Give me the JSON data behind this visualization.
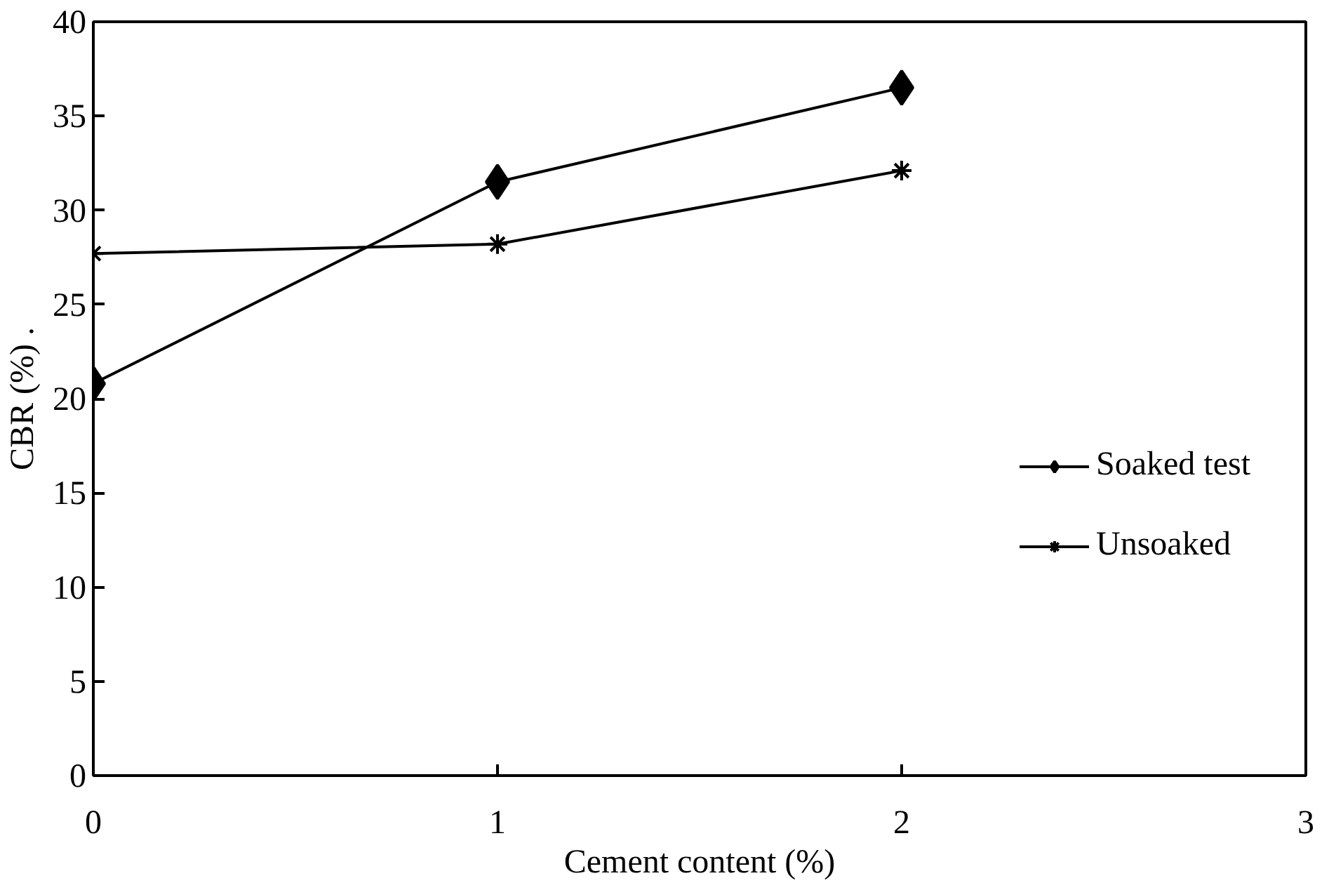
{
  "chart_data": {
    "type": "line",
    "xlabel": "Cement content (%)",
    "ylabel": "CBR (%) .",
    "x": [
      0,
      1,
      2
    ],
    "series": [
      {
        "name": "Soaked test",
        "color": "#000000",
        "marker": "diamond",
        "values": [
          20.8,
          31.5,
          36.5
        ]
      },
      {
        "name": "Unsoaked",
        "color": "#000000",
        "marker": "cross",
        "values": [
          27.7,
          28.2,
          32.1
        ]
      }
    ],
    "xlim": [
      0,
      3
    ],
    "xticks": [
      0,
      1,
      2,
      3
    ],
    "ylim": [
      0,
      40
    ],
    "yticks": [
      0,
      5,
      10,
      15,
      20,
      25,
      30,
      35,
      40
    ],
    "grid": false,
    "legend": "right",
    "line_style": "solid"
  }
}
